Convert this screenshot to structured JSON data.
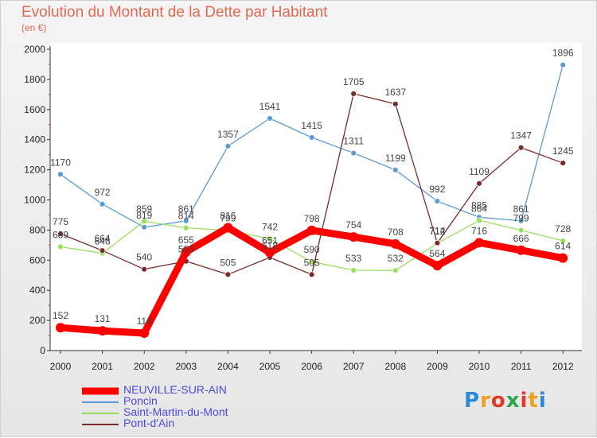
{
  "title": "Evolution du Montant de la Dette par Habitant",
  "subtitle": "(en €)",
  "logo": {
    "text": "Proxiti",
    "colors": [
      "#2a8ad8",
      "#f0a020",
      "#e03a2a",
      "#2aa84a",
      "#e03a2a",
      "#f0a020",
      "#2a8ad8"
    ]
  },
  "chart_data": {
    "type": "line",
    "title": "Evolution du Montant de la Dette par Habitant",
    "subtitle": "(en €)",
    "xlabel": "",
    "ylabel": "",
    "x": [
      "2000",
      "2001",
      "2002",
      "2003",
      "2004",
      "2005",
      "2006",
      "2007",
      "2008",
      "2009",
      "2010",
      "2011",
      "2012"
    ],
    "ylim": [
      0,
      2000
    ],
    "yticks": [
      0,
      200,
      400,
      600,
      800,
      1000,
      1200,
      1400,
      1600,
      1800,
      2000
    ],
    "grid": false,
    "legend_position": "bottom-left",
    "series": [
      {
        "name": "NEUVILLE-SUR-AIN",
        "color": "#ff0000",
        "emphasis": true,
        "values": [
          152,
          131,
          116,
          655,
          816,
          651,
          798,
          754,
          708,
          564,
          716,
          666,
          614
        ],
        "labels": [
          "152",
          "131",
          "116",
          "655",
          "816",
          "651",
          "798",
          "754",
          "708",
          "564",
          "716",
          "666",
          "614"
        ]
      },
      {
        "name": "Poncin",
        "color": "#5b9bd5",
        "values": [
          1170,
          972,
          819,
          861,
          1357,
          1541,
          1415,
          1311,
          1199,
          992,
          885,
          861,
          1896
        ],
        "labels": [
          "1170",
          "972",
          "819",
          "861",
          "1357",
          "1541",
          "1415",
          "1311",
          "1199",
          "992",
          "885",
          "861",
          "1896"
        ]
      },
      {
        "name": "Saint-Martin-du-Mont",
        "color": "#99e05a",
        "values": [
          689,
          646,
          859,
          814,
          799,
          742,
          590,
          533,
          532,
          712,
          864,
          799,
          728
        ],
        "labels": [
          "689",
          "646",
          "859",
          "814",
          "799",
          "742",
          "590",
          "533",
          "532",
          "712",
          "864",
          "799",
          "728"
        ]
      },
      {
        "name": "Pont-d'Ain",
        "color": "#7a2a2a",
        "values": [
          775,
          664,
          540,
          593,
          505,
          618,
          505,
          1705,
          1637,
          714,
          1109,
          1347,
          1245
        ],
        "labels": [
          "775",
          "664",
          "540",
          "593",
          "505",
          "618",
          "505",
          "1705",
          "1637",
          "714",
          "1109",
          "1347",
          "1245"
        ]
      }
    ]
  }
}
